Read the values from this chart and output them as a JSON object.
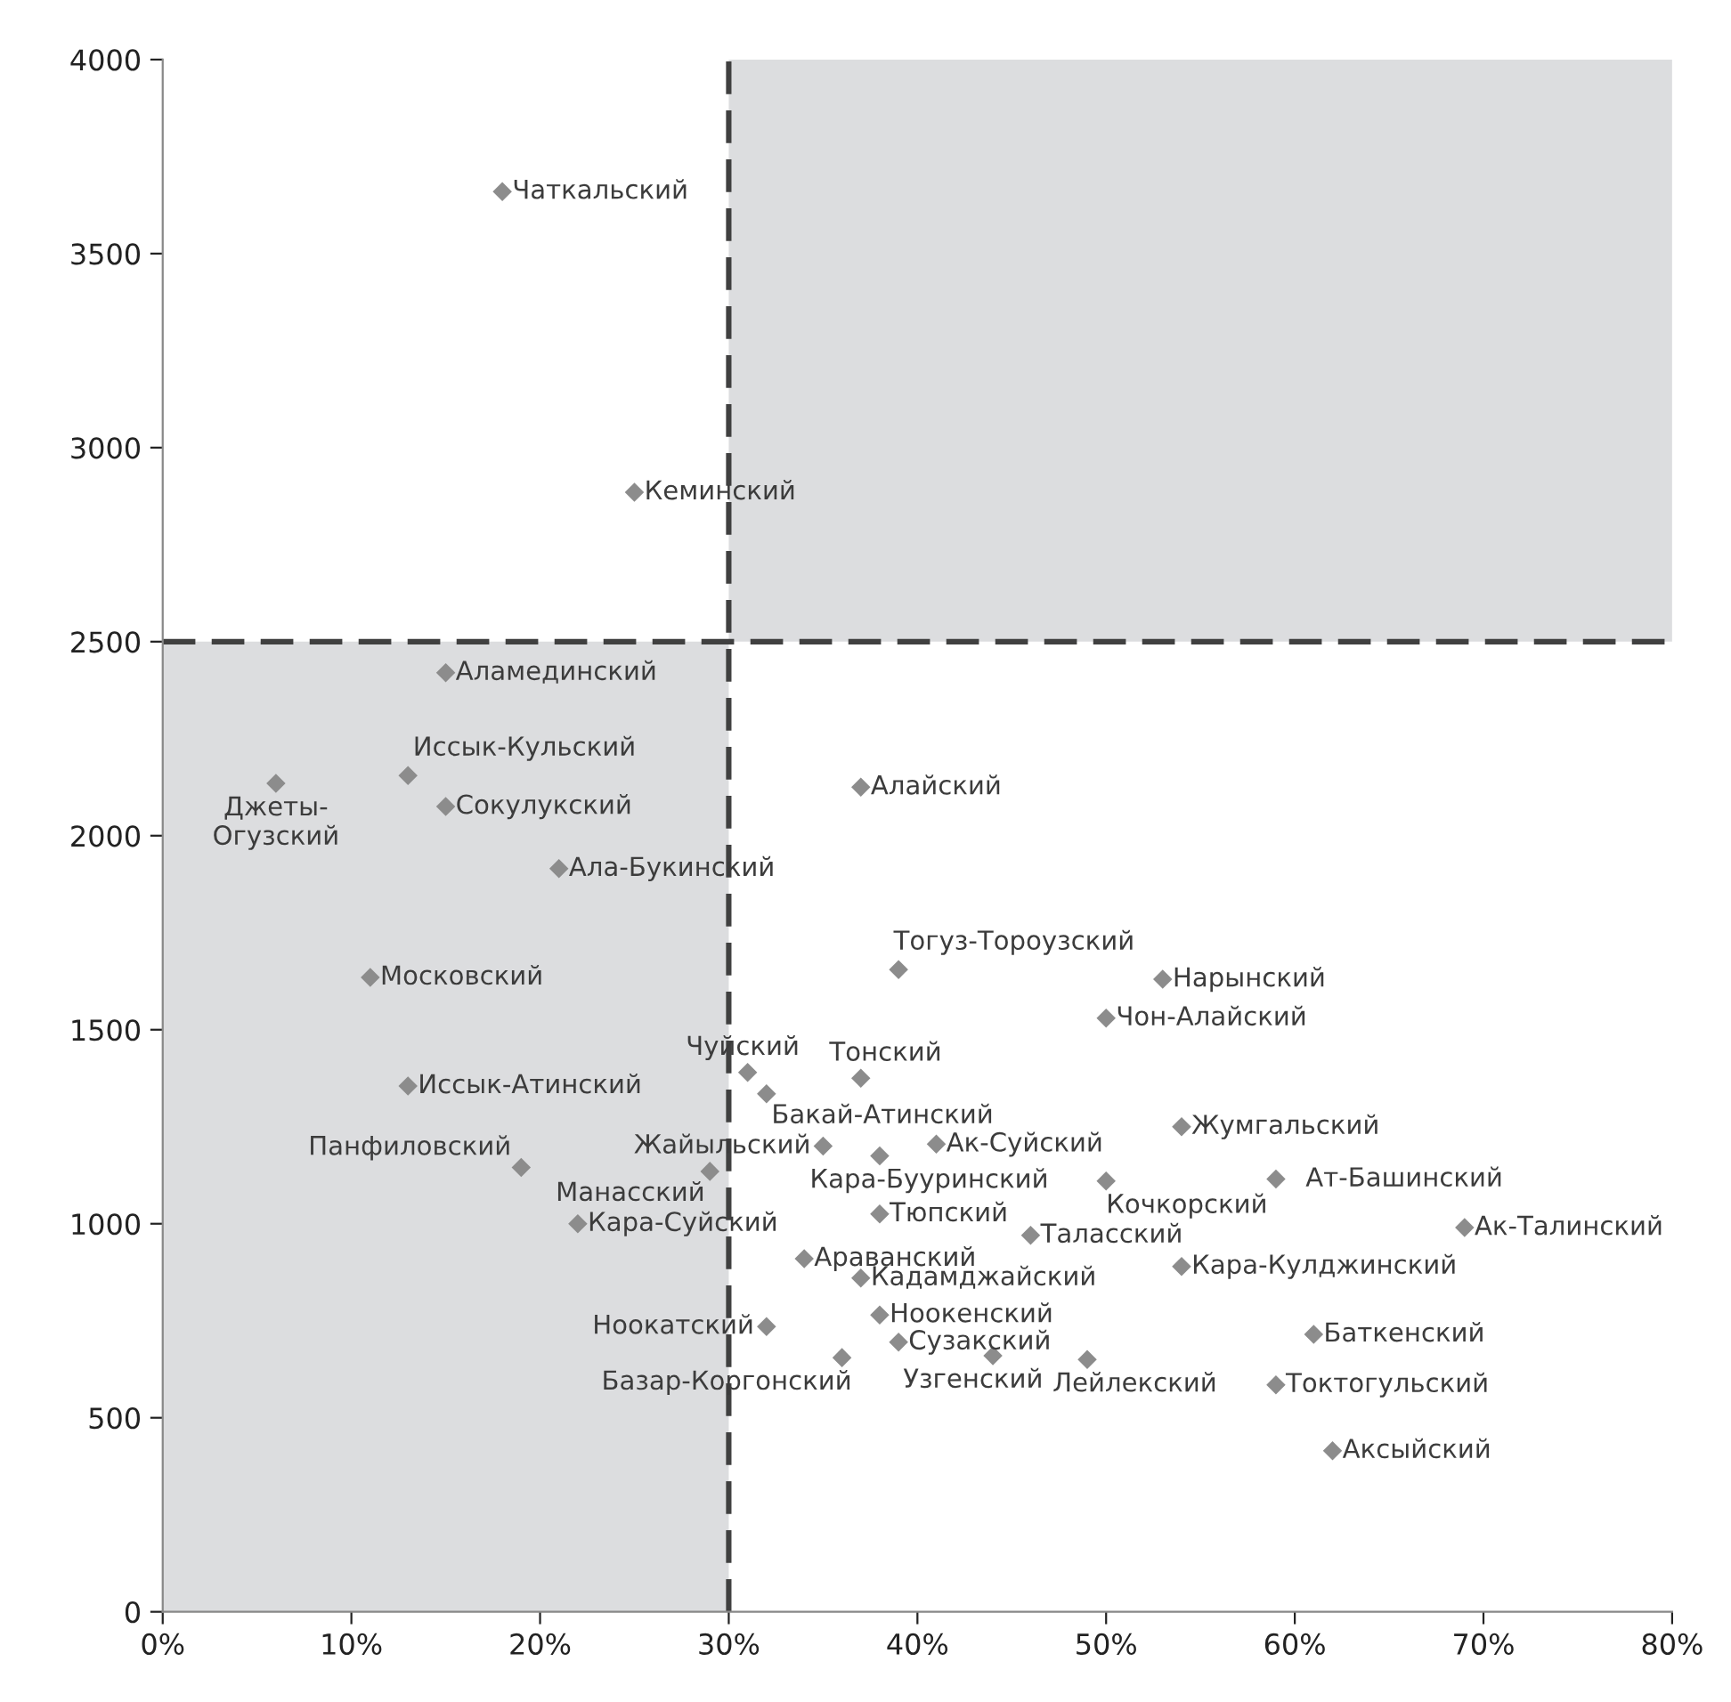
{
  "chart_data": {
    "type": "scatter",
    "marker": "diamond",
    "grid": false,
    "series": [
      {
        "color": "#8c8c8c",
        "x": [
          18,
          25,
          15,
          13,
          6,
          15,
          21,
          11,
          13,
          19,
          29,
          22,
          31,
          32,
          37,
          35,
          38,
          41,
          39,
          53,
          50,
          50,
          54,
          59,
          69,
          38,
          46,
          34,
          37,
          54,
          38,
          39,
          32,
          36,
          44,
          49,
          61,
          59,
          62,
          37
        ],
        "values": [
          3660,
          2885,
          2420,
          2155,
          2135,
          2075,
          1915,
          1635,
          1355,
          1145,
          1135,
          1000,
          1390,
          1335,
          1375,
          1200,
          1175,
          1205,
          1655,
          1630,
          1530,
          1110,
          1250,
          1115,
          990,
          1025,
          970,
          910,
          860,
          890,
          765,
          695,
          735,
          655,
          660,
          650,
          715,
          585,
          415,
          2125
        ]
      }
    ],
    "annotations": [
      {
        "text": "Чаткальский",
        "x": 18,
        "y": 3660
      },
      {
        "text": "Кеминский",
        "x": 25,
        "y": 2885
      },
      {
        "text": "Аламединский",
        "x": 15,
        "y": 2420
      },
      {
        "text": "Иссык-Кульский",
        "x": 13,
        "y": 2155
      },
      {
        "text": "Джеты-\nОгузский",
        "x": 6,
        "y": 2135
      },
      {
        "text": "Сокулукский",
        "x": 15,
        "y": 2075
      },
      {
        "text": "Ала-Букинский",
        "x": 21,
        "y": 1915
      },
      {
        "text": "Московский",
        "x": 11,
        "y": 1635
      },
      {
        "text": "Иссык-Атинский",
        "x": 13,
        "y": 1355
      },
      {
        "text": "Панфиловский",
        "x": 19,
        "y": 1145
      },
      {
        "text": "Манасский",
        "x": 29,
        "y": 1135
      },
      {
        "text": "Кара-Суйский",
        "x": 22,
        "y": 1000
      },
      {
        "text": "Чуйский",
        "x": 31,
        "y": 1390
      },
      {
        "text": "Бакай-Атинский",
        "x": 32,
        "y": 1335
      },
      {
        "text": "Тонский",
        "x": 37,
        "y": 1375
      },
      {
        "text": "Жайыльский",
        "x": 35,
        "y": 1200
      },
      {
        "text": "Кара-Бууринский",
        "x": 38,
        "y": 1175
      },
      {
        "text": "Ак-Суйский",
        "x": 41,
        "y": 1205
      },
      {
        "text": "Тогуз-Тороузский",
        "x": 39,
        "y": 1655
      },
      {
        "text": "Нарынский",
        "x": 53,
        "y": 1630
      },
      {
        "text": "Чон-Алайский",
        "x": 50,
        "y": 1530
      },
      {
        "text": "Кочкорский",
        "x": 50,
        "y": 1110
      },
      {
        "text": "Жумгальский",
        "x": 54,
        "y": 1250
      },
      {
        "text": "Ат-Башинский",
        "x": 59,
        "y": 1115
      },
      {
        "text": "Ак-Талинский",
        "x": 69,
        "y": 990
      },
      {
        "text": "Тюпский",
        "x": 38,
        "y": 1025
      },
      {
        "text": "Таласский",
        "x": 46,
        "y": 970
      },
      {
        "text": "Араванский",
        "x": 34,
        "y": 910
      },
      {
        "text": "Кадамджайский",
        "x": 37,
        "y": 860
      },
      {
        "text": "Кара-Кулджинский",
        "x": 54,
        "y": 890
      },
      {
        "text": "Ноокенский",
        "x": 38,
        "y": 765
      },
      {
        "text": "Сузакский",
        "x": 39,
        "y": 695
      },
      {
        "text": "Ноокатский",
        "x": 32,
        "y": 735
      },
      {
        "text": "Базар-Коргонский",
        "x": 36,
        "y": 655
      },
      {
        "text": "Узгенский",
        "x": 44,
        "y": 660
      },
      {
        "text": "Лейлекский",
        "x": 49,
        "y": 650
      },
      {
        "text": "Баткенский",
        "x": 61,
        "y": 715
      },
      {
        "text": "Токтогульский",
        "x": 59,
        "y": 585
      },
      {
        "text": "Аксыйский",
        "x": 62,
        "y": 415
      },
      {
        "text": "Алайский",
        "x": 37,
        "y": 2125
      }
    ],
    "ref_lines": [
      {
        "axis": "x",
        "value": 30,
        "color": "#404040",
        "line_style": "dashed"
      },
      {
        "axis": "y",
        "value": 2500,
        "color": "#404040",
        "line_style": "dashed"
      }
    ],
    "bands": [
      {
        "axis": "x",
        "from": 0,
        "to": 30,
        "color": "#dcdddf"
      },
      {
        "axis": "x",
        "from": 30,
        "to": 80,
        "color": "#dcdddf"
      }
    ],
    "xlim": [
      0,
      80
    ],
    "ylim": [
      0,
      4000
    ],
    "xticks": [
      {
        "value": 0,
        "label": "0%"
      },
      {
        "value": 10,
        "label": "10%"
      },
      {
        "value": 20,
        "label": "20%"
      },
      {
        "value": 30,
        "label": "30%"
      },
      {
        "value": 40,
        "label": "40%"
      },
      {
        "value": 50,
        "label": "50%"
      },
      {
        "value": 60,
        "label": "60%"
      },
      {
        "value": 70,
        "label": "70%"
      },
      {
        "value": 80,
        "label": "80%"
      }
    ],
    "yticks": [
      0,
      500,
      1000,
      1500,
      2000,
      2500,
      3000,
      3500,
      4000
    ]
  }
}
